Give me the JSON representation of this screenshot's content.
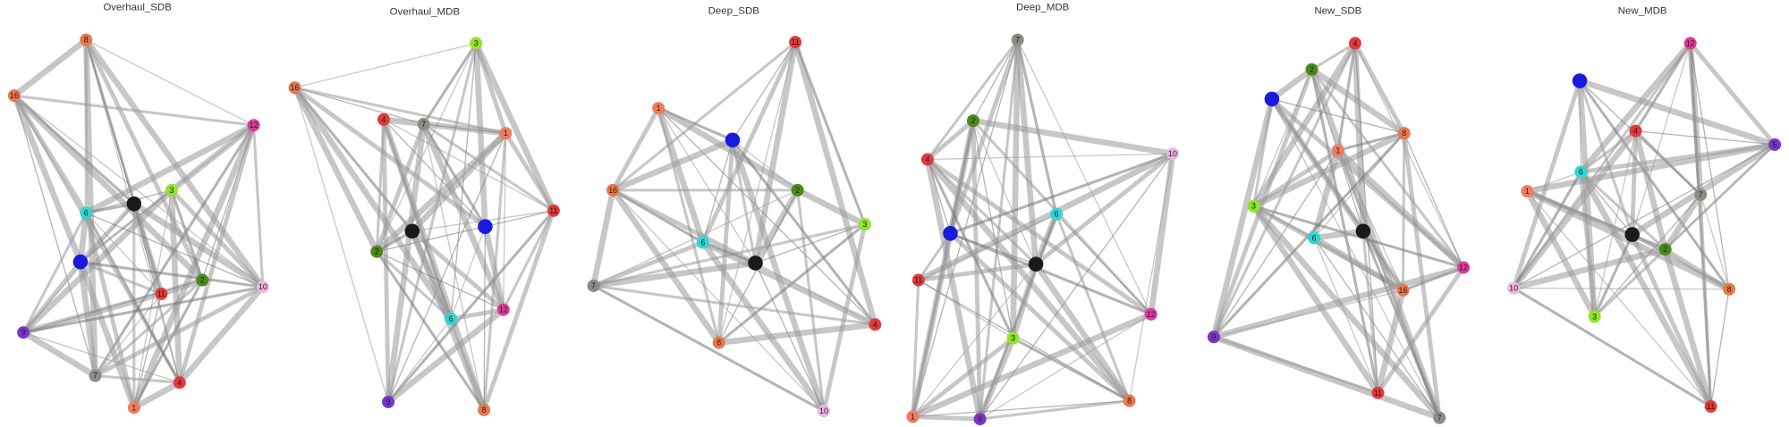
{
  "panels": [
    {
      "title": "Overhaul_SDB",
      "nodes": [
        {
          "label": "8",
          "color": "#e8784a"
        },
        {
          "label": "16",
          "color": "#e8784a"
        },
        {
          "label": "12",
          "color": "#e0399a"
        },
        {
          "label": "3",
          "color": "#8ee52a"
        },
        {
          "color": "#1a1a1a"
        },
        {
          "label": "6",
          "color": "#2fd6d6"
        },
        {
          "color": "#1a1adf"
        },
        {
          "label": "11",
          "color": "#e23a3a"
        },
        {
          "label": "2",
          "color": "#4a8a18"
        },
        {
          "label": "10",
          "color": "#eab8e8"
        },
        {
          "label": "9",
          "color": "#7a35c8"
        },
        {
          "label": "7",
          "color": "#8c8c84"
        },
        {
          "label": "4",
          "color": "#e23a3a"
        },
        {
          "label": "1",
          "color": "#f07c60"
        }
      ]
    },
    {
      "title": "Overhaul_MDB",
      "nodes": [
        {
          "label": "16",
          "color": "#e8784a"
        },
        {
          "label": "3",
          "color": "#8ee52a"
        },
        {
          "label": "4",
          "color": "#e23a3a"
        },
        {
          "label": "7",
          "color": "#8c8c84"
        },
        {
          "label": "1",
          "color": "#f07c60"
        },
        {
          "label": "11",
          "color": "#e23a3a"
        },
        {
          "color": "#1a1a1a"
        },
        {
          "color": "#1a1adf"
        },
        {
          "label": "2",
          "color": "#4a8a18"
        },
        {
          "label": "12",
          "color": "#e0399a"
        },
        {
          "label": "6",
          "color": "#2fd6d6"
        },
        {
          "label": "9",
          "color": "#7a35c8"
        },
        {
          "label": "8",
          "color": "#e8784a"
        }
      ]
    },
    {
      "title": "Deep_SDB",
      "nodes": [
        {
          "label": "11",
          "color": "#e23a3a"
        },
        {
          "label": "1",
          "color": "#f07c60"
        },
        {
          "color": "#1a1adf"
        },
        {
          "label": "16",
          "color": "#e8784a"
        },
        {
          "label": "2",
          "color": "#4a8a18"
        },
        {
          "label": "3",
          "color": "#8ee52a"
        },
        {
          "label": "6",
          "color": "#2fd6d6"
        },
        {
          "color": "#1a1a1a"
        },
        {
          "label": "7",
          "color": "#8c8c84"
        },
        {
          "label": "4",
          "color": "#e23a3a"
        },
        {
          "label": "8",
          "color": "#e8784a"
        },
        {
          "label": "10",
          "color": "#eab8e8"
        }
      ]
    },
    {
      "title": "Deep_MDB",
      "nodes": [
        {
          "label": "7",
          "color": "#8c8c84"
        },
        {
          "label": "2",
          "color": "#4a8a18"
        },
        {
          "label": "4",
          "color": "#e23a3a"
        },
        {
          "label": "10",
          "color": "#eab8e8"
        },
        {
          "label": "6",
          "color": "#2fd6d6"
        },
        {
          "color": "#1a1adf"
        },
        {
          "color": "#1a1a1a"
        },
        {
          "label": "11",
          "color": "#e23a3a"
        },
        {
          "label": "3",
          "color": "#8ee52a"
        },
        {
          "label": "12",
          "color": "#e0399a"
        },
        {
          "label": "8",
          "color": "#e8784a"
        },
        {
          "label": "1",
          "color": "#f07c60"
        },
        {
          "label": "9",
          "color": "#7a35c8"
        }
      ]
    },
    {
      "title": "New_SDB",
      "nodes": [
        {
          "label": "4",
          "color": "#e23a3a"
        },
        {
          "label": "2",
          "color": "#4a8a18"
        },
        {
          "color": "#1a1adf"
        },
        {
          "label": "1",
          "color": "#f07c60"
        },
        {
          "label": "8",
          "color": "#e8784a"
        },
        {
          "label": "3",
          "color": "#8ee52a"
        },
        {
          "label": "6",
          "color": "#2fd6d6"
        },
        {
          "color": "#1a1a1a"
        },
        {
          "label": "12",
          "color": "#e0399a"
        },
        {
          "label": "16",
          "color": "#e8784a"
        },
        {
          "label": "11",
          "color": "#e23a3a"
        },
        {
          "label": "9",
          "color": "#7a35c8"
        },
        {
          "label": "7",
          "color": "#8c8c84"
        }
      ]
    },
    {
      "title": "New_MDB",
      "nodes": [
        {
          "label": "12",
          "color": "#e0399a"
        },
        {
          "color": "#1a1adf"
        },
        {
          "label": "4",
          "color": "#e23a3a"
        },
        {
          "label": "5",
          "color": "#7a35c8"
        },
        {
          "label": "6",
          "color": "#2fd6d6"
        },
        {
          "label": "1",
          "color": "#f07c60"
        },
        {
          "label": "7",
          "color": "#8c8c84"
        },
        {
          "color": "#1a1a1a"
        },
        {
          "label": "2",
          "color": "#4a8a18"
        },
        {
          "label": "8",
          "color": "#e8784a"
        },
        {
          "label": "10",
          "color": "#eab8e8"
        },
        {
          "label": "3",
          "color": "#8ee52a"
        },
        {
          "label": "11",
          "color": "#e23a3a"
        }
      ]
    }
  ]
}
